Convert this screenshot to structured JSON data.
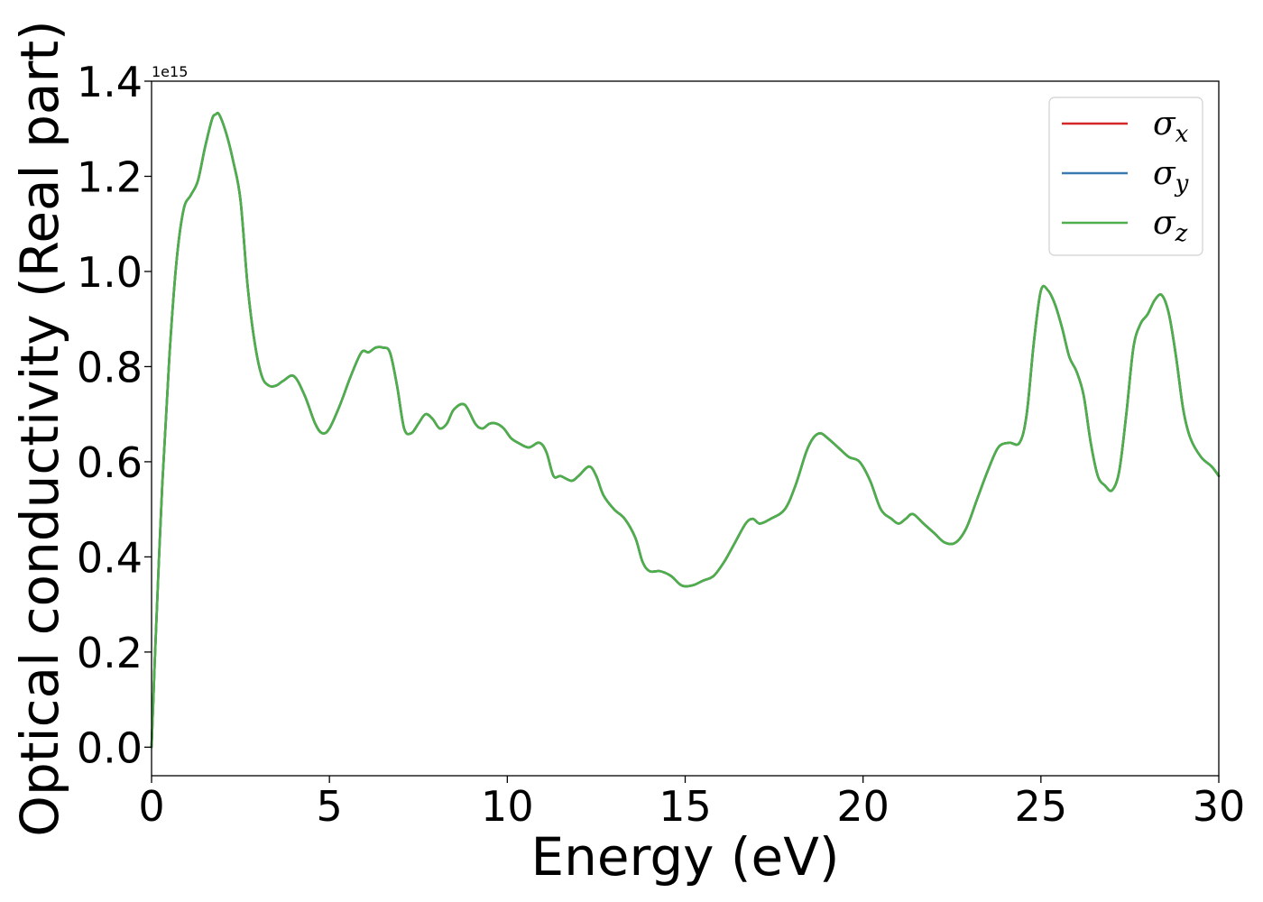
{
  "chart_data": {
    "type": "line",
    "xlabel": "Energy (eV)",
    "ylabel": "Optical conductivity (Real part)",
    "y_offset_label": "1e15",
    "xlim": [
      0,
      30
    ],
    "ylim": [
      -0.06,
      1.4
    ],
    "x_ticks": [
      0,
      5,
      10,
      15,
      20,
      25,
      30
    ],
    "x_tick_labels": [
      "0",
      "5",
      "10",
      "15",
      "20",
      "25",
      "30"
    ],
    "y_ticks": [
      0.0,
      0.2,
      0.4,
      0.6,
      0.8,
      1.0,
      1.2,
      1.4
    ],
    "y_tick_labels": [
      "0.0",
      "0.2",
      "0.4",
      "0.6",
      "0.8",
      "1.0",
      "1.2",
      "1.4"
    ],
    "grid": false,
    "legend_position": "top-right",
    "x": [
      0.0,
      0.1,
      0.3,
      0.5,
      0.7,
      0.9,
      1.1,
      1.3,
      1.5,
      1.7,
      1.8,
      1.9,
      2.1,
      2.3,
      2.5,
      2.7,
      2.9,
      3.1,
      3.3,
      3.5,
      3.7,
      4.0,
      4.3,
      4.6,
      4.8,
      5.0,
      5.3,
      5.6,
      5.9,
      6.1,
      6.3,
      6.5,
      6.7,
      6.9,
      7.1,
      7.3,
      7.5,
      7.7,
      7.9,
      8.1,
      8.3,
      8.5,
      8.8,
      9.1,
      9.3,
      9.5,
      9.7,
      9.9,
      10.1,
      10.3,
      10.6,
      10.9,
      11.1,
      11.3,
      11.5,
      11.8,
      12.0,
      12.3,
      12.5,
      12.7,
      13.0,
      13.3,
      13.6,
      13.8,
      14.0,
      14.3,
      14.6,
      14.9,
      15.2,
      15.5,
      15.8,
      16.1,
      16.4,
      16.7,
      16.9,
      17.1,
      17.4,
      17.8,
      18.1,
      18.4,
      18.6,
      18.8,
      19.0,
      19.3,
      19.6,
      19.9,
      20.2,
      20.5,
      20.8,
      21.0,
      21.2,
      21.4,
      21.7,
      22.0,
      22.3,
      22.6,
      22.9,
      23.2,
      23.5,
      23.8,
      24.1,
      24.4,
      24.6,
      24.8,
      25.0,
      25.2,
      25.4,
      25.6,
      25.8,
      26.0,
      26.2,
      26.4,
      26.6,
      26.8,
      27.0,
      27.2,
      27.4,
      27.6,
      27.8,
      28.0,
      28.2,
      28.4,
      28.6,
      28.8,
      29.0,
      29.2,
      29.5,
      29.8,
      30.0
    ],
    "series": [
      {
        "name": "σx",
        "label_base": "σ",
        "label_sub": "x",
        "color": "#d62728",
        "values": [
          0.0,
          0.2,
          0.55,
          0.82,
          1.02,
          1.13,
          1.16,
          1.19,
          1.26,
          1.32,
          1.33,
          1.33,
          1.29,
          1.23,
          1.15,
          0.97,
          0.85,
          0.78,
          0.76,
          0.76,
          0.77,
          0.78,
          0.74,
          0.68,
          0.66,
          0.67,
          0.72,
          0.78,
          0.83,
          0.83,
          0.84,
          0.84,
          0.83,
          0.76,
          0.67,
          0.66,
          0.68,
          0.7,
          0.69,
          0.67,
          0.68,
          0.71,
          0.72,
          0.68,
          0.67,
          0.68,
          0.68,
          0.67,
          0.65,
          0.64,
          0.63,
          0.64,
          0.62,
          0.57,
          0.57,
          0.56,
          0.57,
          0.59,
          0.57,
          0.53,
          0.5,
          0.48,
          0.44,
          0.39,
          0.37,
          0.37,
          0.36,
          0.34,
          0.34,
          0.35,
          0.36,
          0.39,
          0.43,
          0.47,
          0.48,
          0.47,
          0.48,
          0.5,
          0.55,
          0.62,
          0.65,
          0.66,
          0.65,
          0.63,
          0.61,
          0.6,
          0.56,
          0.5,
          0.48,
          0.47,
          0.48,
          0.49,
          0.47,
          0.45,
          0.43,
          0.43,
          0.46,
          0.52,
          0.58,
          0.63,
          0.64,
          0.64,
          0.7,
          0.85,
          0.96,
          0.96,
          0.93,
          0.88,
          0.82,
          0.79,
          0.74,
          0.64,
          0.57,
          0.55,
          0.54,
          0.58,
          0.7,
          0.84,
          0.89,
          0.91,
          0.94,
          0.95,
          0.91,
          0.82,
          0.71,
          0.65,
          0.61,
          0.59,
          0.57
        ]
      },
      {
        "name": "σy",
        "label_base": "σ",
        "label_sub": "y",
        "color": "#3a7ab0",
        "values": [
          0.0,
          0.2,
          0.55,
          0.82,
          1.02,
          1.13,
          1.16,
          1.19,
          1.26,
          1.32,
          1.33,
          1.33,
          1.29,
          1.23,
          1.15,
          0.97,
          0.85,
          0.78,
          0.76,
          0.76,
          0.77,
          0.78,
          0.74,
          0.68,
          0.66,
          0.67,
          0.72,
          0.78,
          0.83,
          0.83,
          0.84,
          0.84,
          0.83,
          0.76,
          0.67,
          0.66,
          0.68,
          0.7,
          0.69,
          0.67,
          0.68,
          0.71,
          0.72,
          0.68,
          0.67,
          0.68,
          0.68,
          0.67,
          0.65,
          0.64,
          0.63,
          0.64,
          0.62,
          0.57,
          0.57,
          0.56,
          0.57,
          0.59,
          0.57,
          0.53,
          0.5,
          0.48,
          0.44,
          0.39,
          0.37,
          0.37,
          0.36,
          0.34,
          0.34,
          0.35,
          0.36,
          0.39,
          0.43,
          0.47,
          0.48,
          0.47,
          0.48,
          0.5,
          0.55,
          0.62,
          0.65,
          0.66,
          0.65,
          0.63,
          0.61,
          0.6,
          0.56,
          0.5,
          0.48,
          0.47,
          0.48,
          0.49,
          0.47,
          0.45,
          0.43,
          0.43,
          0.46,
          0.52,
          0.58,
          0.63,
          0.64,
          0.64,
          0.7,
          0.85,
          0.96,
          0.96,
          0.93,
          0.88,
          0.82,
          0.79,
          0.74,
          0.64,
          0.57,
          0.55,
          0.54,
          0.58,
          0.7,
          0.84,
          0.89,
          0.91,
          0.94,
          0.95,
          0.91,
          0.82,
          0.71,
          0.65,
          0.61,
          0.59,
          0.57
        ]
      },
      {
        "name": "σz",
        "label_base": "σ",
        "label_sub": "z",
        "color": "#4daf4a",
        "values": [
          0.0,
          0.2,
          0.55,
          0.82,
          1.02,
          1.13,
          1.16,
          1.19,
          1.26,
          1.32,
          1.33,
          1.33,
          1.29,
          1.23,
          1.15,
          0.97,
          0.85,
          0.78,
          0.76,
          0.76,
          0.77,
          0.78,
          0.74,
          0.68,
          0.66,
          0.67,
          0.72,
          0.78,
          0.83,
          0.83,
          0.84,
          0.84,
          0.83,
          0.76,
          0.67,
          0.66,
          0.68,
          0.7,
          0.69,
          0.67,
          0.68,
          0.71,
          0.72,
          0.68,
          0.67,
          0.68,
          0.68,
          0.67,
          0.65,
          0.64,
          0.63,
          0.64,
          0.62,
          0.57,
          0.57,
          0.56,
          0.57,
          0.59,
          0.57,
          0.53,
          0.5,
          0.48,
          0.44,
          0.39,
          0.37,
          0.37,
          0.36,
          0.34,
          0.34,
          0.35,
          0.36,
          0.39,
          0.43,
          0.47,
          0.48,
          0.47,
          0.48,
          0.5,
          0.55,
          0.62,
          0.65,
          0.66,
          0.65,
          0.63,
          0.61,
          0.6,
          0.56,
          0.5,
          0.48,
          0.47,
          0.48,
          0.49,
          0.47,
          0.45,
          0.43,
          0.43,
          0.46,
          0.52,
          0.58,
          0.63,
          0.64,
          0.64,
          0.7,
          0.85,
          0.96,
          0.96,
          0.93,
          0.88,
          0.82,
          0.79,
          0.74,
          0.64,
          0.57,
          0.55,
          0.54,
          0.58,
          0.7,
          0.84,
          0.89,
          0.91,
          0.94,
          0.95,
          0.91,
          0.82,
          0.71,
          0.65,
          0.61,
          0.59,
          0.57
        ]
      }
    ]
  }
}
